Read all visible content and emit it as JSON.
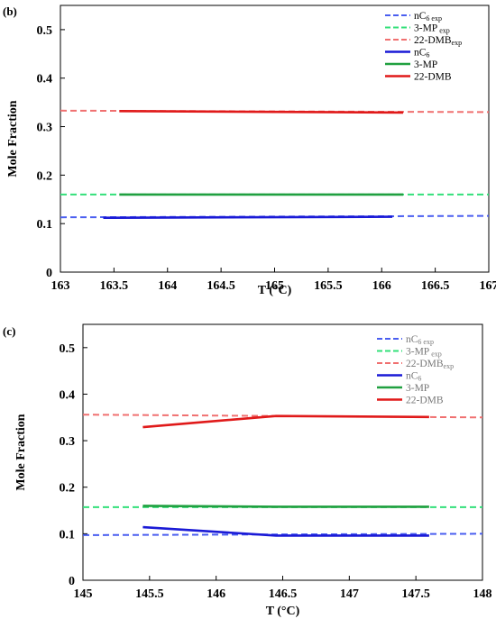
{
  "chart_data": [
    {
      "panel_label": "(b)",
      "type": "line",
      "xlabel": "T (°C)",
      "ylabel": "Mole Fraction",
      "xlim": [
        163,
        167
      ],
      "ylim": [
        0,
        0.55
      ],
      "xticks": [
        "163",
        "163.5",
        "164",
        "164.5",
        "165",
        "165.5",
        "166",
        "166.5",
        "167"
      ],
      "yticks": [
        "0",
        "0.1",
        "0.2",
        "0.3",
        "0.4",
        "0.5"
      ],
      "grid": false,
      "legend_position": "top-right",
      "legend_style": "dark",
      "series": [
        {
          "name": "nC6 exp",
          "legend_main": "nC",
          "legend_sub": "6 exp",
          "color": "#4a5ef0",
          "dash": true,
          "points": [
            [
              163,
              0.113
            ],
            [
              167,
              0.116
            ]
          ]
        },
        {
          "name": "3-MP exp",
          "legend_main": "3-MP",
          "legend_sub": " exp",
          "color": "#33e07a",
          "dash": true,
          "points": [
            [
              163,
              0.16
            ],
            [
              167,
              0.16
            ]
          ]
        },
        {
          "name": "22-DMBexp",
          "legend_main": "22-DMB",
          "legend_sub": "exp",
          "color": "#f07070",
          "dash": true,
          "points": [
            [
              163,
              0.333
            ],
            [
              167,
              0.33
            ]
          ]
        },
        {
          "name": "nC6",
          "legend_main": "nC",
          "legend_sub": "6",
          "color": "#1a1ad6",
          "dash": false,
          "points": [
            [
              163.4,
              0.112
            ],
            [
              166.1,
              0.114
            ]
          ]
        },
        {
          "name": "3-MP",
          "legend_main": "3-MP",
          "legend_sub": "",
          "color": "#20a040",
          "dash": false,
          "points": [
            [
              163.55,
              0.16
            ],
            [
              166.2,
              0.16
            ]
          ]
        },
        {
          "name": "22-DMB",
          "legend_main": "22-DMB",
          "legend_sub": "",
          "color": "#e01a1a",
          "dash": false,
          "points": [
            [
              163.55,
              0.332
            ],
            [
              166.2,
              0.329
            ]
          ]
        }
      ]
    },
    {
      "panel_label": "(c)",
      "type": "line",
      "xlabel": "T (°C)",
      "ylabel": "Mole Fraction",
      "xlim": [
        145,
        148
      ],
      "ylim": [
        0,
        0.55
      ],
      "xticks": [
        "145",
        "145.5",
        "146",
        "146.5",
        "147",
        "147.5",
        "148"
      ],
      "yticks": [
        "0",
        "0.1",
        "0.2",
        "0.3",
        "0.4",
        "0.5"
      ],
      "grid": false,
      "legend_position": "top-right",
      "legend_style": "light",
      "series": [
        {
          "name": "nC6 exp",
          "legend_main": "nC",
          "legend_sub": "6 exp",
          "color": "#4a5ef0",
          "dash": true,
          "points": [
            [
              145,
              0.097
            ],
            [
              148,
              0.1
            ]
          ]
        },
        {
          "name": "3-MP exp",
          "legend_main": "3-MP",
          "legend_sub": " exp",
          "color": "#33e07a",
          "dash": true,
          "points": [
            [
              145,
              0.157
            ],
            [
              148,
              0.157
            ]
          ]
        },
        {
          "name": "22-DMBexp",
          "legend_main": "22-DMB",
          "legend_sub": "exp",
          "color": "#f07070",
          "dash": true,
          "points": [
            [
              145,
              0.356
            ],
            [
              148,
              0.35
            ]
          ]
        },
        {
          "name": "nC6",
          "legend_main": "nC",
          "legend_sub": "6",
          "color": "#1a1ad6",
          "dash": false,
          "points": [
            [
              145.45,
              0.114
            ],
            [
              146.45,
              0.096
            ],
            [
              147.6,
              0.096
            ]
          ]
        },
        {
          "name": "3-MP",
          "legend_main": "3-MP",
          "legend_sub": "",
          "color": "#20a040",
          "dash": false,
          "points": [
            [
              145.45,
              0.16
            ],
            [
              146.45,
              0.158
            ],
            [
              147.6,
              0.158
            ]
          ]
        },
        {
          "name": "22-DMB",
          "legend_main": "22-DMB",
          "legend_sub": "",
          "color": "#e01a1a",
          "dash": false,
          "points": [
            [
              145.45,
              0.329
            ],
            [
              146.45,
              0.353
            ],
            [
              147.6,
              0.351
            ]
          ]
        }
      ]
    }
  ]
}
